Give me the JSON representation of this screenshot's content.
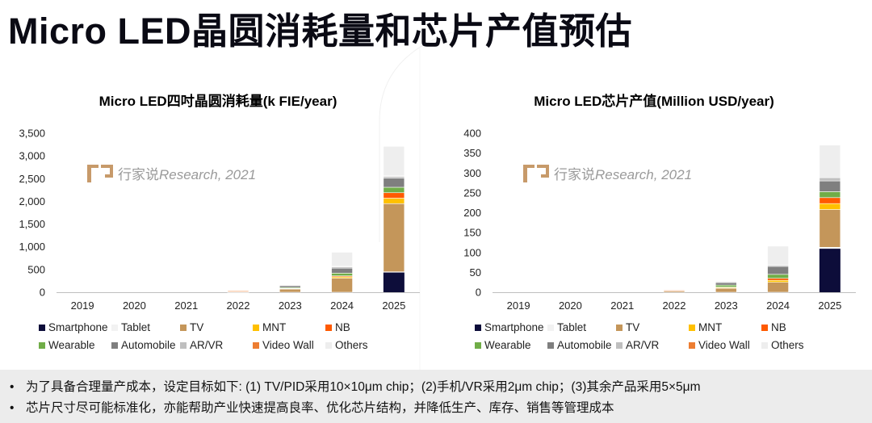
{
  "page": {
    "title": "Micro LED晶圆消耗量和芯片产值预估"
  },
  "watermark": {
    "brand": "行家说",
    "text": "Research, 2021"
  },
  "legend": [
    {
      "name": "Smartphone",
      "color": "#0d0d3a"
    },
    {
      "name": "Tablet",
      "color": "#f2f2f2"
    },
    {
      "name": "TV",
      "color": "#c4965a"
    },
    {
      "name": "MNT",
      "color": "#ffc000"
    },
    {
      "name": "NB",
      "color": "#ff5a00"
    },
    {
      "name": "Wearable",
      "color": "#70ad47"
    },
    {
      "name": "Automobile",
      "color": "#7f7f7f"
    },
    {
      "name": "AR/VR",
      "color": "#bfbfbf"
    },
    {
      "name": "Video Wall",
      "color": "#ed7d31"
    },
    {
      "name": "Others",
      "color": "#eeeeee"
    }
  ],
  "chart_data": [
    {
      "type": "bar",
      "stacked": true,
      "title": "Micro LED四吋晶圆消耗量(k FIE/year)",
      "categories": [
        "2019",
        "2020",
        "2021",
        "2022",
        "2023",
        "2024",
        "2025"
      ],
      "ylim": [
        0,
        3500
      ],
      "yticks": [
        0,
        500,
        1000,
        1500,
        2000,
        2500,
        3000,
        3500
      ],
      "ytick_labels": [
        "0",
        "500",
        "1,000",
        "1,500",
        "2,000",
        "2,500",
        "3,000",
        "3,500"
      ],
      "series": [
        {
          "name": "Smartphone",
          "values": [
            0,
            0,
            0,
            0,
            0,
            0,
            440
          ]
        },
        {
          "name": "Tablet",
          "values": [
            0,
            0,
            0,
            0,
            0,
            0,
            10
          ]
        },
        {
          "name": "TV",
          "values": [
            0,
            0,
            0,
            5,
            70,
            310,
            1500
          ]
        },
        {
          "name": "MNT",
          "values": [
            0,
            0,
            0,
            0,
            10,
            30,
            120
          ]
        },
        {
          "name": "NB",
          "values": [
            0,
            0,
            0,
            0,
            5,
            20,
            120
          ]
        },
        {
          "name": "Wearable",
          "values": [
            0,
            0,
            0,
            2,
            20,
            60,
            120
          ]
        },
        {
          "name": "Automobile",
          "values": [
            0,
            0,
            0,
            2,
            40,
            110,
            200
          ]
        },
        {
          "name": "AR/VR",
          "values": [
            0,
            0,
            0,
            0,
            10,
            30,
            40
          ]
        },
        {
          "name": "Video Wall",
          "values": [
            0,
            0,
            0,
            20,
            5,
            10,
            10
          ]
        },
        {
          "name": "Others",
          "values": [
            0,
            0,
            0,
            0,
            10,
            310,
            650
          ]
        }
      ]
    },
    {
      "type": "bar",
      "stacked": true,
      "title": "Micro LED芯片产值(Million USD/year)",
      "categories": [
        "2019",
        "2020",
        "2021",
        "2022",
        "2023",
        "2024",
        "2025"
      ],
      "ylim": [
        0,
        400
      ],
      "yticks": [
        0,
        50,
        100,
        150,
        200,
        250,
        300,
        350,
        400
      ],
      "ytick_labels": [
        "0",
        "50",
        "100",
        "150",
        "200",
        "250",
        "300",
        "350",
        "400"
      ],
      "series": [
        {
          "name": "Smartphone",
          "values": [
            0,
            0,
            0,
            0,
            0,
            0,
            110
          ]
        },
        {
          "name": "Tablet",
          "values": [
            0,
            0,
            0,
            0,
            0,
            0,
            3
          ]
        },
        {
          "name": "TV",
          "values": [
            0,
            0,
            0,
            3,
            10,
            25,
            95
          ]
        },
        {
          "name": "MNT",
          "values": [
            0,
            0,
            0,
            0,
            2,
            5,
            15
          ]
        },
        {
          "name": "NB",
          "values": [
            0,
            0,
            0,
            0,
            1,
            5,
            15
          ]
        },
        {
          "name": "Wearable",
          "values": [
            0,
            0,
            0,
            0,
            5,
            10,
            15
          ]
        },
        {
          "name": "Automobile",
          "values": [
            0,
            0,
            0,
            0,
            6,
            20,
            27
          ]
        },
        {
          "name": "AR/VR",
          "values": [
            0,
            0,
            0,
            0,
            2,
            3,
            8
          ]
        },
        {
          "name": "Video Wall",
          "values": [
            0,
            0,
            0,
            2,
            0,
            0,
            0
          ]
        },
        {
          "name": "Others",
          "values": [
            0,
            0,
            0,
            0,
            0,
            48,
            82
          ]
        }
      ]
    }
  ],
  "notes": [
    "为了具备合理量产成本，设定目标如下: (1) TV/PID采用10×10μm chip；(2)手机/VR采用2μm chip；(3)其余产品采用5×5μm",
    "芯片尺寸尽可能标准化，亦能帮助产业快速提高良率、优化芯片结构，并降低生产、库存、销售等管理成本"
  ],
  "bullet": "•"
}
